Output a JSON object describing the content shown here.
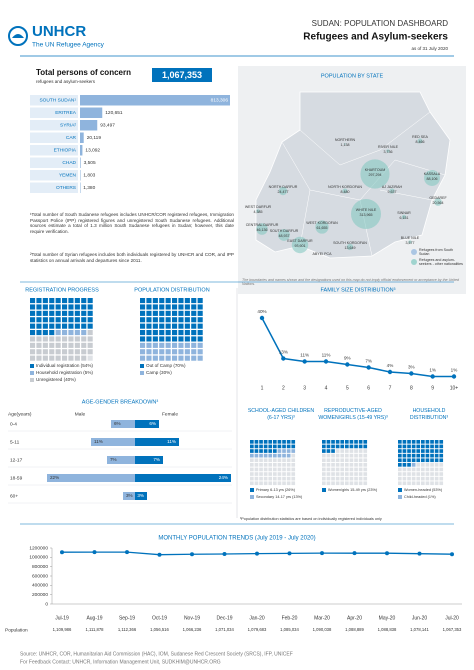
{
  "header": {
    "logo": "UNHCR",
    "tagline": "The UN Refugee Agency",
    "kicker": "SUDAN: POPULATION DASHBOARD",
    "title": "Refugees and Asylum-seekers",
    "date": "as of 31 July 2020"
  },
  "total": {
    "title": "Total persons of concern",
    "subtitle": "refugees and asylum-seekers",
    "value": 1067353,
    "value_label": "1,067,353"
  },
  "notes": [
    "¹Total number of South Sudanese refugees includes UNHCR/COR registered refugees, Immigration Passport Police (IPP) registered figures and unregistered South Sudanese refugees. Additional sources estimate a total of 1.3 million South Sudanese refugees in Sudan; however, this date require verification.",
    "²Total number of Syrian refugees includes both individuals registered by UNHCR and COR, and IPP statistics on annual arrivals and departures since 2011."
  ],
  "chart_data": [
    {
      "type": "hbar",
      "categories": [
        "SOUTH SUDAN¹",
        "ERITREA",
        "SYRIA²",
        "CAR",
        "ETHIOPIA",
        "CHAD",
        "YEMEN",
        "OTHERS"
      ],
      "values": [
        813306,
        120651,
        93497,
        20119,
        13092,
        3505,
        1803,
        1380
      ],
      "value_labels": [
        "813,306",
        "120,651",
        "93,497",
        "20,119",
        "13,092",
        "3,505",
        "1,803",
        "1,380"
      ],
      "color": "#8fb4dd"
    },
    {
      "type": "map",
      "title": "POPULATION BY STATE",
      "categories": [
        "NORTHERN",
        "RED SEA",
        "RIVER NILE",
        "KHARTOUM",
        "KASSALA",
        "NORTH DARFUR",
        "NORTH KORDOFAN",
        "AJ JAZIRAH",
        "GEDAREF",
        "WHITE NILE",
        "SINNAR",
        "WEST DARFUR",
        "CENTRAL DARFUR",
        "SOUTH DARFUR",
        "EAST DARFUR",
        "WEST KORDOFAN",
        "SOUTH KORDOFAN",
        "BLUE NILE"
      ],
      "values": [
        1138,
        8466,
        3736,
        297294,
        88106,
        24477,
        8480,
        9637,
        20564,
        313965,
        6151,
        4385,
        46136,
        48937,
        93601,
        61655,
        13649,
        3577
      ],
      "value_labels": [
        "1,138",
        "8,466",
        "3,736",
        "297,294",
        "88,106",
        "24,477",
        "8,480",
        "9,637",
        "20,564",
        "313,965",
        "6,151",
        "4,385",
        "46,136",
        "48,937",
        "93,601",
        "61,655",
        "13,649",
        "3,577"
      ],
      "other_labels": [
        "ABYEI PCA"
      ],
      "color": "#7fc7c0",
      "legend": [
        "Refugees from South Sudan",
        "Refugees and asylum-seekers - other nationalities"
      ],
      "note": "The boundaries and names shown and the designations used on this map do not imply official endorsement or acceptance by the United Nations."
    },
    {
      "type": "waffle",
      "title": "REGISTRATION PROGRESS",
      "categories": [
        "Individual registration (54%)",
        "Household registration (5%)",
        "Unregistered (40%)"
      ],
      "values": [
        54,
        5,
        40
      ],
      "colors": [
        "#0072bc",
        "#8fb4dd",
        "#c8ccd1"
      ]
    },
    {
      "type": "waffle",
      "title": "POPULATION DISTRIBUTION",
      "categories": [
        "Out of Camp (70%)",
        "Camp (30%)"
      ],
      "values": [
        70,
        30
      ],
      "colors": [
        "#0072bc",
        "#8fb4dd"
      ]
    },
    {
      "type": "line",
      "title": "FAMILY SIZE DISTRIBUTION³",
      "categories": [
        "1",
        "2",
        "3",
        "4",
        "5",
        "6",
        "7",
        "8",
        "9",
        "10+"
      ],
      "values": [
        40,
        13,
        11,
        11,
        9,
        7,
        4,
        3,
        1,
        1
      ],
      "value_labels": [
        "40%",
        "13%",
        "11%",
        "11%",
        "9%",
        "7%",
        "4%",
        "3%",
        "1%",
        "1%"
      ],
      "color": "#0072bc"
    },
    {
      "type": "pyramid",
      "title": "AGE-GENDER BREAKDOWN³",
      "axis_label": "Age(years)",
      "categories": [
        "0-4",
        "5-11",
        "12-17",
        "18-59",
        "60+"
      ],
      "series": [
        {
          "name": "Male",
          "color": "#8fb4dd",
          "values": [
            6,
            11,
            7,
            22,
            3
          ],
          "value_labels": [
            "6%",
            "11%",
            "7%",
            "22%",
            "3%"
          ]
        },
        {
          "name": "Female",
          "color": "#0072bc",
          "values": [
            6,
            11,
            7,
            24,
            3
          ],
          "value_labels": [
            "6%",
            "11%",
            "7%",
            "24%",
            "3%"
          ]
        }
      ]
    },
    {
      "type": "waffle",
      "title": "SCHOOL-AGED CHILDREN (6-17 YRS)³",
      "categories": [
        "Primary 6-13 yrs (26%)",
        "Secondary 14-17 yrs (13%)"
      ],
      "values": [
        26,
        13
      ],
      "colors": [
        "#0072bc",
        "#8fb4dd"
      ]
    },
    {
      "type": "waffle",
      "title": "REPRODUCTIVE-AGED WOMEN/GIRLS (15-49 YRS)³",
      "categories": [
        "Women/girls 15-49 yrs (23%)"
      ],
      "values": [
        23
      ],
      "colors": [
        "#0072bc"
      ]
    },
    {
      "type": "waffle",
      "title": "HOUSEHOLD DISTRIBUTION³",
      "categories": [
        "Women-headed (53%)",
        "Child-headed (1%)"
      ],
      "values": [
        53,
        1
      ],
      "colors": [
        "#0072bc",
        "#8fb4dd"
      ]
    },
    {
      "type": "trend",
      "title": "MONTHLY POPULATION TRENDS (July 2019 - July 2020)",
      "row_label": "Population",
      "categories": [
        "Jul-19",
        "Aug-19",
        "Sep-19",
        "Oct-19",
        "Nov-19",
        "Dec-19",
        "Jan-20",
        "Feb-20",
        "Mar-20",
        "Apr-20",
        "May-20",
        "Jun-20",
        "Jul-20"
      ],
      "series": [
        {
          "name": "Population",
          "color": "#0072bc",
          "values": [
            1109986,
            1111878,
            1112366,
            1056516,
            1066236,
            1071034,
            1079683,
            1085034,
            1090038,
            1088889,
            1088838,
            1078141,
            1067353
          ],
          "value_labels": [
            "1,109,986",
            "1,111,878",
            "1,112,366",
            "1,056,516",
            "1,066,236",
            "1,071,034",
            "1,079,683",
            "1,085,034",
            "1,090,038",
            "1,088,889",
            "1,088,838",
            "1,078,141",
            "1,067,353"
          ]
        }
      ],
      "ylim": [
        0,
        1200000
      ],
      "yticks": [
        0,
        200000,
        400000,
        600000,
        800000,
        1000000,
        1200000
      ],
      "grid": false
    }
  ],
  "distribution_note": "³Population distribution statistics are based on individually registered individuals only",
  "footer": [
    "Source: UNHCR, COR, Humanitarian Aid Commission (HAC), IOM, Sudanese Red Crescent Society (SRCS), IFP, UNICEF",
    "For Feedback Contact: UNHCR, Information Management Unit, SUDKHIM@UNHCR.ORG"
  ]
}
